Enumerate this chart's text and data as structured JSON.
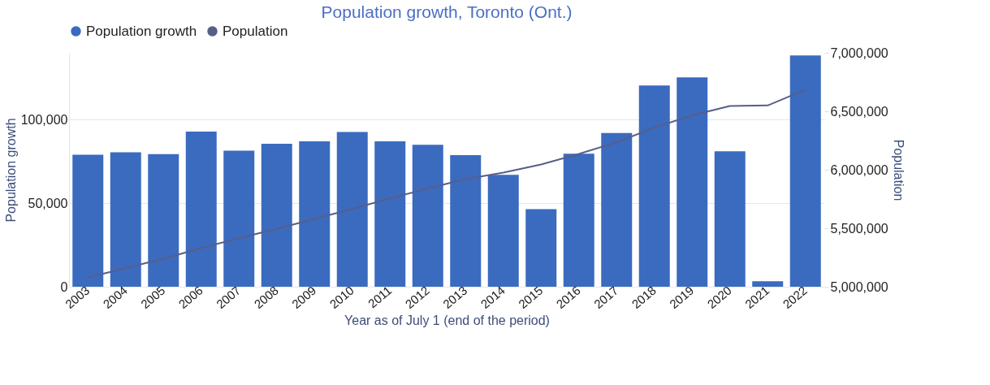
{
  "chart_data": {
    "type": "bar",
    "title": "Population growth, Toronto (Ont.)",
    "xlabel": "Year as of July 1 (end of the period)",
    "ylabel": "Population growth",
    "y2label": "Population",
    "categories": [
      "2003",
      "2004",
      "2005",
      "2006",
      "2007",
      "2008",
      "2009",
      "2010",
      "2011",
      "2012",
      "2013",
      "2014",
      "2015",
      "2016",
      "2017",
      "2018",
      "2019",
      "2020",
      "2021",
      "2022"
    ],
    "series": [
      {
        "name": "Population growth",
        "color": "#3a6bbf",
        "values": [
          79000,
          80500,
          79400,
          92800,
          81400,
          85600,
          87000,
          92600,
          87000,
          84900,
          78700,
          67000,
          46400,
          79600,
          92000,
          120400,
          125300,
          81000,
          3300,
          138400
        ]
      },
      {
        "name": "Population",
        "type": "line",
        "axis": "y2",
        "color": "#575e8a",
        "values": [
          5078000,
          5160000,
          5240000,
          5330000,
          5415000,
          5495000,
          5580000,
          5665000,
          5755000,
          5840000,
          5920000,
          5975000,
          6045000,
          6135000,
          6235000,
          6360000,
          6465000,
          6545000,
          6550000,
          6685000
        ]
      }
    ],
    "ylim": [
      0,
      140000
    ],
    "yticks": [
      0,
      {
        "value": 50000,
        "label": "50,000"
      },
      {
        "value": 100000,
        "label": "100,000"
      }
    ],
    "y2lim": [
      5000000,
      7000000
    ],
    "y2ticks": [
      {
        "value": 5000000,
        "label": "5,000,000"
      },
      {
        "value": 5500000,
        "label": "5,500,000"
      },
      {
        "value": 6000000,
        "label": "6,000,000"
      },
      {
        "value": 6500000,
        "label": "6,500,000"
      },
      {
        "value": 7000000,
        "label": "7,000,000"
      }
    ],
    "grid": "y",
    "legend": "top"
  }
}
